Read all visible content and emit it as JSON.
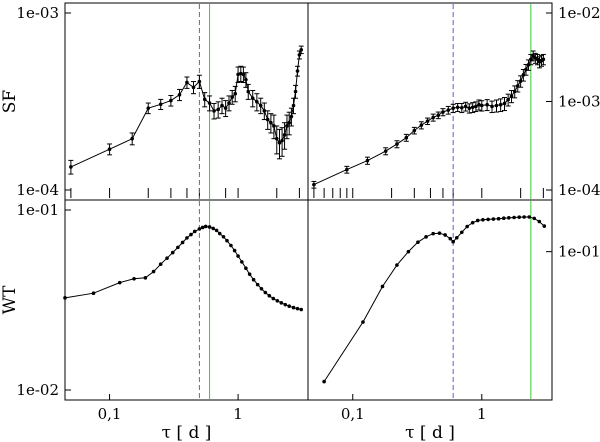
{
  "chart_data": [
    {
      "id": "sf_left",
      "type": "scatter",
      "panel": "top-left",
      "xscale": "log",
      "yscale": "log",
      "xlim": [
        0.045,
        3.5
      ],
      "ylim": [
        0.0001,
        0.001
      ],
      "ylabel": "SF",
      "y_tick_labels": [
        {
          "value": 0.0001,
          "label": "1e-04"
        },
        {
          "value": 0.001,
          "label": "1e-03"
        }
      ],
      "y_label_side": "left",
      "x_ticks_visible": [
        0.05,
        0.1,
        0.2,
        0.3,
        0.4,
        0.5,
        0.8,
        1,
        2,
        3
      ],
      "vlines": [
        {
          "x": 0.5,
          "color": "#6060d0",
          "style": "dashed"
        },
        {
          "x": 0.6,
          "color": "#33cc33",
          "style": "solid"
        }
      ],
      "series": [
        {
          "line": true,
          "x": [
            0.05,
            0.1,
            0.15,
            0.2,
            0.25,
            0.3,
            0.35,
            0.4,
            0.45,
            0.5,
            0.55,
            0.6,
            0.65,
            0.7,
            0.75,
            0.8,
            0.85,
            0.9,
            0.95,
            1.0,
            1.05,
            1.1,
            1.15,
            1.2,
            1.3,
            1.4,
            1.5,
            1.6,
            1.7,
            1.8,
            1.9,
            2.0,
            2.1,
            2.2,
            2.3,
            2.4,
            2.5,
            2.6,
            2.7,
            2.8,
            2.9,
            3.0,
            3.1
          ],
          "y": [
            0.000135,
            0.00017,
            0.000195,
            0.00029,
            0.000305,
            0.00032,
            0.000345,
            0.000405,
            0.00038,
            0.00041,
            0.000325,
            0.00031,
            0.00028,
            0.000285,
            0.0003,
            0.00029,
            0.00031,
            0.000335,
            0.00035,
            0.00045,
            0.000455,
            0.00045,
            0.00042,
            0.00036,
            0.00033,
            0.000315,
            0.0003,
            0.00028,
            0.00025,
            0.00024,
            0.00023,
            0.000195,
            0.000185,
            0.00019,
            0.000205,
            0.00023,
            0.00024,
            0.00026,
            0.0003,
            0.00036,
            0.00047,
            0.00058,
            0.00062
          ],
          "err": [
            1.2e-05,
            1.2e-05,
            1.5e-05,
            2e-05,
            2e-05,
            2.2e-05,
            2.5e-05,
            3e-05,
            3e-05,
            3.5e-05,
            3e-05,
            3e-05,
            2.8e-05,
            3e-05,
            3e-05,
            3e-05,
            3e-05,
            3e-05,
            3.5e-05,
            4.5e-05,
            4.5e-05,
            4.5e-05,
            4e-05,
            3.5e-05,
            3.5e-05,
            3.5e-05,
            3e-05,
            3e-05,
            3e-05,
            3e-05,
            3.5e-05,
            3.5e-05,
            3.5e-05,
            3.5e-05,
            3.5e-05,
            3.5e-05,
            3.5e-05,
            3e-05,
            3e-05,
            3e-05,
            3e-05,
            3e-05,
            3e-05
          ]
        }
      ]
    },
    {
      "id": "sf_right",
      "type": "scatter",
      "panel": "top-right",
      "xscale": "log",
      "yscale": "log",
      "xlim": [
        0.045,
        3.5
      ],
      "ylim": [
        0.0001,
        0.01
      ],
      "y_tick_labels": [
        {
          "value": 0.0001,
          "label": "1e-04"
        },
        {
          "value": 0.001,
          "label": "1e-03"
        },
        {
          "value": 0.01,
          "label": "1e-02"
        }
      ],
      "y_label_side": "right",
      "x_ticks_visible": [
        0.05,
        0.06,
        0.07,
        0.08,
        0.09,
        0.1,
        0.2,
        0.3,
        0.4,
        0.5,
        0.6,
        1,
        2,
        3
      ],
      "vlines": [
        {
          "x": 0.6,
          "color": "#6060d0",
          "style": "dashed"
        },
        {
          "x": 2.4,
          "color": "#33cc33",
          "style": "solid"
        }
      ],
      "series": [
        {
          "line": true,
          "x": [
            0.05,
            0.09,
            0.13,
            0.18,
            0.22,
            0.26,
            0.3,
            0.34,
            0.38,
            0.42,
            0.46,
            0.5,
            0.55,
            0.6,
            0.65,
            0.7,
            0.75,
            0.8,
            0.85,
            0.9,
            0.95,
            1.0,
            1.1,
            1.2,
            1.3,
            1.4,
            1.5,
            1.6,
            1.7,
            1.8,
            1.9,
            2.0,
            2.1,
            2.2,
            2.3,
            2.4,
            2.5,
            2.6,
            2.7,
            2.8,
            2.9,
            3.0
          ],
          "y": [
            0.000115,
            0.00017,
            0.000215,
            0.000275,
            0.00033,
            0.00039,
            0.00047,
            0.00054,
            0.0006,
            0.00066,
            0.0007,
            0.00076,
            0.0008,
            0.00084,
            0.00086,
            0.00085,
            0.00088,
            0.00084,
            0.00086,
            0.00088,
            0.00092,
            0.0009,
            0.00092,
            0.00088,
            0.0009,
            0.00092,
            0.00095,
            0.00105,
            0.00115,
            0.0013,
            0.0015,
            0.0017,
            0.002,
            0.0023,
            0.0026,
            0.003,
            0.0033,
            0.0031,
            0.003,
            0.0028,
            0.0029,
            0.003
          ],
          "err": [
            1e-05,
            1.5e-05,
            2e-05,
            2.5e-05,
            3e-05,
            3.5e-05,
            4e-05,
            5e-05,
            5e-05,
            6e-05,
            6e-05,
            7e-05,
            8e-05,
            9e-05,
            9e-05,
            0.0001,
            0.0001,
            0.0001,
            0.00011,
            0.00011,
            0.00012,
            0.00012,
            0.00013,
            0.00013,
            0.00014,
            0.00015,
            0.00016,
            0.00016,
            0.00018,
            0.0002,
            0.00022,
            0.00025,
            0.0003,
            0.00032,
            0.00035,
            0.0004,
            0.00042,
            0.0004,
            0.0004,
            0.0004,
            0.0004,
            0.0004
          ]
        }
      ]
    },
    {
      "id": "wt_left",
      "type": "line",
      "panel": "bottom-left",
      "xscale": "log",
      "yscale": "log",
      "xlim": [
        0.045,
        3.5
      ],
      "ylim": [
        0.01,
        0.1
      ],
      "ylabel": "WT",
      "xlabel": "τ [ d ]",
      "x_tick_labels": [
        {
          "value": 0.1,
          "label": "0,1"
        },
        {
          "value": 1,
          "label": "1"
        }
      ],
      "y_tick_labels": [
        {
          "value": 0.01,
          "label": "1e-02"
        },
        {
          "value": 0.1,
          "label": "1e-01"
        }
      ],
      "y_label_side": "left",
      "vlines": [
        {
          "x": 0.5,
          "color": "#6060d0",
          "style": "dashed"
        },
        {
          "x": 0.6,
          "color": "#33cc33",
          "style": "solid"
        }
      ],
      "series": [
        {
          "x": [
            0.045,
            0.075,
            0.12,
            0.155,
            0.19,
            0.22,
            0.25,
            0.28,
            0.31,
            0.34,
            0.37,
            0.4,
            0.43,
            0.46,
            0.5,
            0.53,
            0.56,
            0.6,
            0.64,
            0.68,
            0.72,
            0.77,
            0.82,
            0.88,
            0.94,
            1.0,
            1.07,
            1.15,
            1.23,
            1.32,
            1.42,
            1.52,
            1.63,
            1.75,
            1.88,
            2.02,
            2.17,
            2.33,
            2.5,
            2.7,
            2.9,
            3.1
          ],
          "y": [
            0.0325,
            0.0345,
            0.0395,
            0.0415,
            0.042,
            0.0455,
            0.05,
            0.054,
            0.058,
            0.062,
            0.066,
            0.07,
            0.073,
            0.076,
            0.0785,
            0.08,
            0.081,
            0.0805,
            0.079,
            0.077,
            0.074,
            0.071,
            0.0675,
            0.0635,
            0.0595,
            0.0555,
            0.0515,
            0.0475,
            0.044,
            0.041,
            0.0385,
            0.0365,
            0.0348,
            0.0334,
            0.0322,
            0.0313,
            0.0305,
            0.0298,
            0.0292,
            0.0287,
            0.0283,
            0.028
          ]
        }
      ]
    },
    {
      "id": "wt_right",
      "type": "line",
      "panel": "bottom-right",
      "xscale": "log",
      "yscale": "log",
      "xlim": [
        0.045,
        3.5
      ],
      "ylim": [
        0.01,
        0.2
      ],
      "xlabel": "τ [ d ]",
      "x_tick_labels": [
        {
          "value": 0.1,
          "label": "0,1"
        },
        {
          "value": 1,
          "label": "1"
        }
      ],
      "y_tick_labels": [
        {
          "value": 0.1,
          "label": "1e-01"
        }
      ],
      "y_label_side": "right",
      "vlines": [
        {
          "x": 0.6,
          "color": "#6060d0",
          "style": "dashed"
        },
        {
          "x": 2.4,
          "color": "#33cc33",
          "style": "solid"
        }
      ],
      "series": [
        {
          "x": [
            0.06,
            0.12,
            0.17,
            0.22,
            0.27,
            0.32,
            0.37,
            0.42,
            0.47,
            0.52,
            0.57,
            0.6,
            0.64,
            0.7,
            0.77,
            0.85,
            0.93,
            1.02,
            1.12,
            1.23,
            1.35,
            1.48,
            1.62,
            1.78,
            1.95,
            2.13,
            2.33,
            2.55,
            2.79,
            3.05
          ],
          "y": [
            0.0115,
            0.031,
            0.056,
            0.08,
            0.1,
            0.117,
            0.128,
            0.135,
            0.136,
            0.132,
            0.124,
            0.118,
            0.126,
            0.138,
            0.152,
            0.162,
            0.168,
            0.17,
            0.171,
            0.172,
            0.173,
            0.1745,
            0.1755,
            0.1765,
            0.1775,
            0.178,
            0.178,
            0.174,
            0.165,
            0.153
          ]
        }
      ]
    }
  ]
}
